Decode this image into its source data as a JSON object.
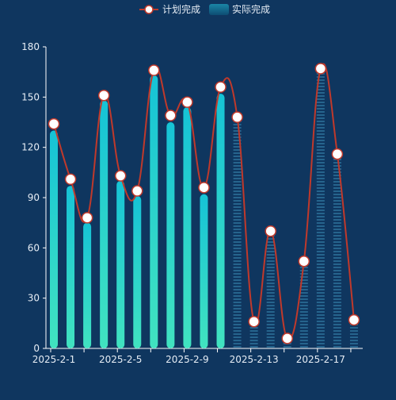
{
  "colors": {
    "background": "#0f365f",
    "axis": "#ffffff",
    "label": "#e6edf5",
    "line": "#c0392b",
    "point_fill": "#ffffff",
    "bar_top": "#16c3d6",
    "bar_bottom": "#41e3c0",
    "faint_bar": "#1d5a84"
  },
  "legend": {
    "plan_label": "计划完成",
    "actual_label": "实际完成",
    "position": "top-center"
  },
  "chart_data": {
    "type": "bar",
    "x_tick_labels": [
      "2025-2-1",
      "2025-2-5",
      "2025-2-9",
      "2025-2-13",
      "2025-2-17"
    ],
    "categories": [
      "2025-2-1",
      "2025-2-2",
      "2025-2-3",
      "2025-2-4",
      "2025-2-5",
      "2025-2-6",
      "2025-2-7",
      "2025-2-8",
      "2025-2-9",
      "2025-2-10",
      "2025-2-11",
      "2025-2-12",
      "2025-2-13",
      "2025-2-14",
      "2025-2-15",
      "2025-2-16",
      "2025-2-17",
      "2025-2-18",
      "2025-2-19"
    ],
    "ylim": [
      0,
      180
    ],
    "yticks": [
      0,
      30,
      60,
      90,
      120,
      150,
      180
    ],
    "grid": false,
    "series": [
      {
        "name": "计划完成",
        "type": "line",
        "smooth": true,
        "values": [
          134,
          101,
          78,
          151,
          103,
          94,
          166,
          139,
          147,
          96,
          156,
          138,
          16,
          70,
          6,
          52,
          167,
          116,
          17
        ]
      },
      {
        "name": "实际完成",
        "type": "bar",
        "values": [
          130,
          97,
          75,
          148,
          100,
          91,
          163,
          135,
          144,
          92,
          152,
          138,
          16,
          70,
          6,
          52,
          167,
          116,
          17
        ]
      }
    ]
  }
}
